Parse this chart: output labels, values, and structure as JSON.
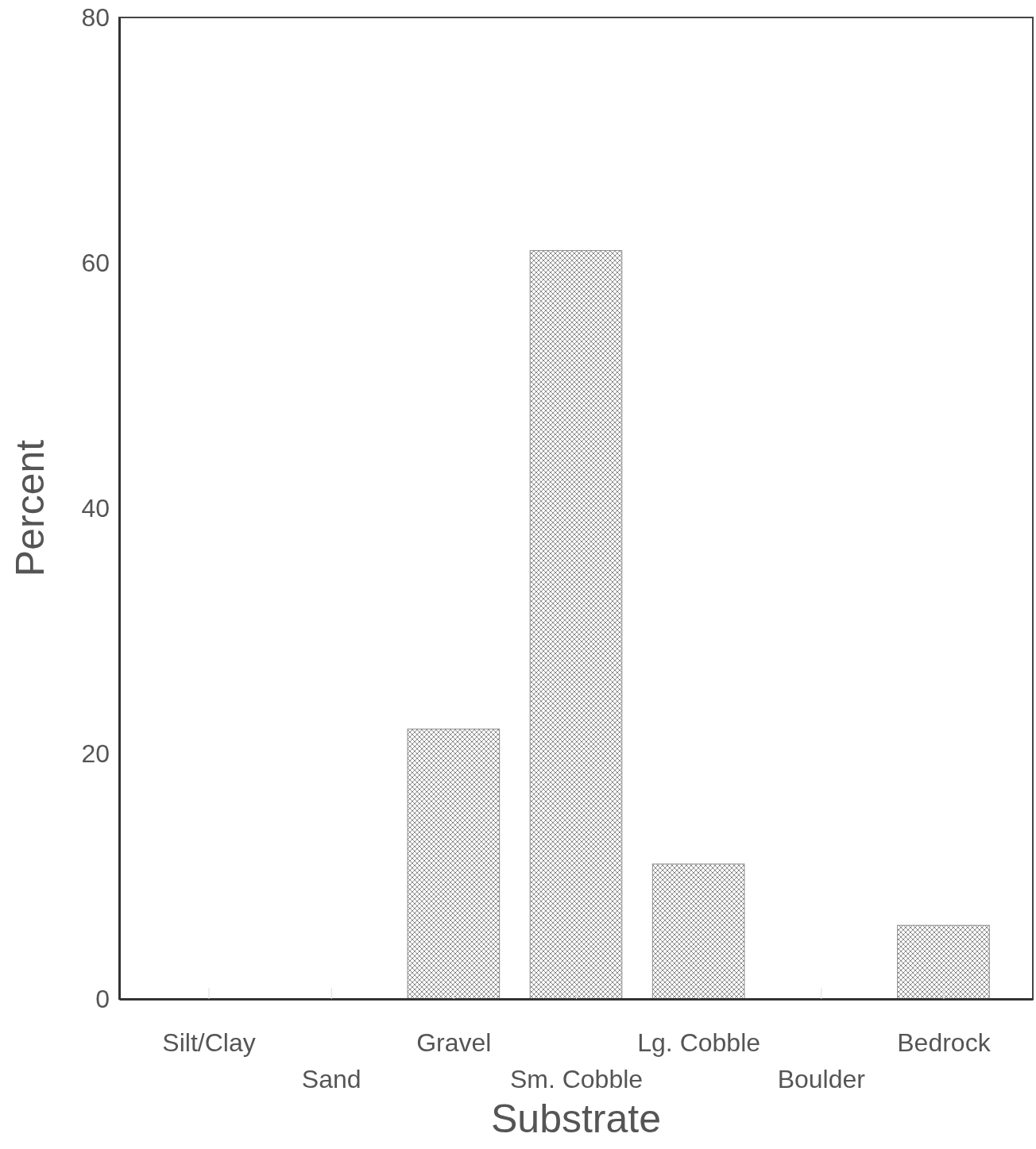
{
  "chart_data": {
    "type": "bar",
    "xlabel": "Substrate",
    "ylabel": "Percent",
    "categories": [
      "Silt/Clay",
      "Sand",
      "Gravel",
      "Sm. Cobble",
      "Lg. Cobble",
      "Boulder",
      "Bedrock"
    ],
    "values": [
      0,
      0,
      22,
      61,
      11,
      0,
      6
    ],
    "color": "#8c8c8c",
    "ylim": [
      0,
      80
    ],
    "yticks": [
      0,
      20,
      40,
      60,
      80
    ],
    "grid": false
  }
}
